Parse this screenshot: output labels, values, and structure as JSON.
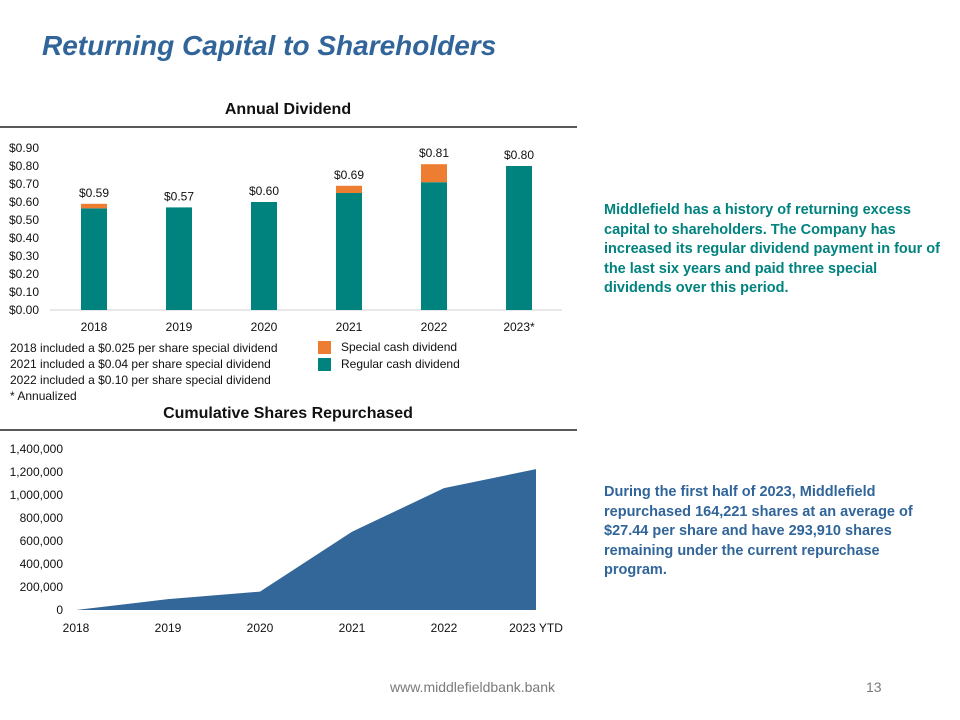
{
  "slide": {
    "title": "Returning Capital to Shareholders",
    "footer_url": "www.middlefieldbank.bank",
    "page_number": "13"
  },
  "notes": {
    "dividend": [
      "2018 included a $0.025 per share special dividend",
      "2021 included a $0.04 per share special dividend",
      "2022 included a $0.10 per share special dividend",
      "* Annualized"
    ]
  },
  "sidebar": {
    "dividend_text": "Middlefield has a history of returning excess capital to shareholders.  The Company has increased its regular dividend payment in four of the last six years and paid three special dividends over this period.",
    "repurchase_text": "During the first half of 2023, Middlefield repurchased 164,221 shares at an average of $27.44 per share and have 293,910 shares remaining under the current repurchase program."
  },
  "colors": {
    "title": "#31659a",
    "regular": "#00827f",
    "special": "#ed7d31",
    "area": "#336699",
    "dividend_text": "#00827f",
    "repurchase_text": "#31659a"
  },
  "chart_data": [
    {
      "type": "bar",
      "title": "Annual Dividend",
      "categories": [
        "2018",
        "2019",
        "2020",
        "2021",
        "2022",
        "2023*"
      ],
      "series": [
        {
          "name": "Regular cash dividend",
          "values": [
            0.565,
            0.57,
            0.6,
            0.65,
            0.71,
            0.8
          ]
        },
        {
          "name": "Special cash dividend",
          "values": [
            0.025,
            0,
            0,
            0.04,
            0.1,
            0
          ]
        }
      ],
      "data_labels": [
        "$0.59",
        "$0.57",
        "$0.60",
        "$0.69",
        "$0.81",
        "$0.80"
      ],
      "y_ticks": [
        "$0.00",
        "$0.10",
        "$0.20",
        "$0.30",
        "$0.40",
        "$0.50",
        "$0.60",
        "$0.70",
        "$0.80",
        "$0.90"
      ],
      "ylim": [
        0,
        0.9
      ],
      "stacked": true,
      "legend_order": [
        "Special cash dividend",
        "Regular cash dividend"
      ],
      "legend_position": "bottom-right"
    },
    {
      "type": "area",
      "title": "Cumulative Shares Repurchased",
      "categories": [
        "2018",
        "2019",
        "2020",
        "2021",
        "2022",
        "2023 YTD"
      ],
      "values": [
        0,
        95000,
        160000,
        680000,
        1060000,
        1225000
      ],
      "y_ticks": [
        "0",
        "200,000",
        "400,000",
        "600,000",
        "800,000",
        "1,000,000",
        "1,200,000",
        "1,400,000"
      ],
      "ylim": [
        0,
        1400000
      ]
    }
  ]
}
